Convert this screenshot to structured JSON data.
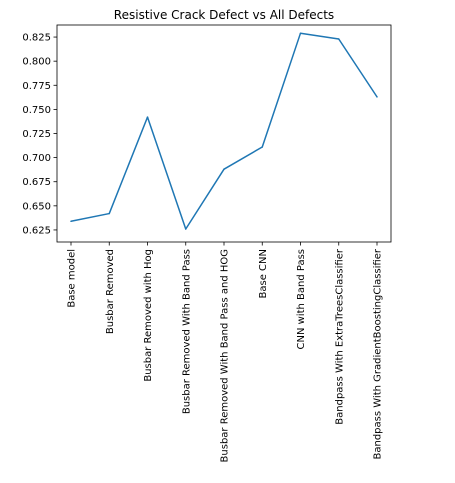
{
  "chart_data": {
    "type": "line",
    "title": "Resistive Crack Defect vs All Defects",
    "xlabel": "",
    "ylabel": "",
    "categories": [
      "Base model",
      "Busbar Removed",
      "Busbar Removed with Hog",
      "Busbar Removed With Band Pass",
      "Busbar Removed With Band Pass and HOG",
      "Base CNN",
      "CNN with Band Pass",
      "Bandpass With ExtraTreesClassifier",
      "Bandpass With GradientBoostingClassifier"
    ],
    "values": [
      0.634,
      0.642,
      0.742,
      0.626,
      0.688,
      0.711,
      0.829,
      0.823,
      0.763
    ],
    "ylim": [
      0.6125,
      0.8375
    ],
    "yticks": [
      0.625,
      0.65,
      0.675,
      0.7,
      0.725,
      0.75,
      0.775,
      0.8,
      0.825
    ],
    "ytick_labels": [
      "0.625",
      "0.650",
      "0.675",
      "0.700",
      "0.725",
      "0.750",
      "0.775",
      "0.800",
      "0.825"
    ],
    "grid": false,
    "legend": "none",
    "line_color": "#1f77b4"
  }
}
